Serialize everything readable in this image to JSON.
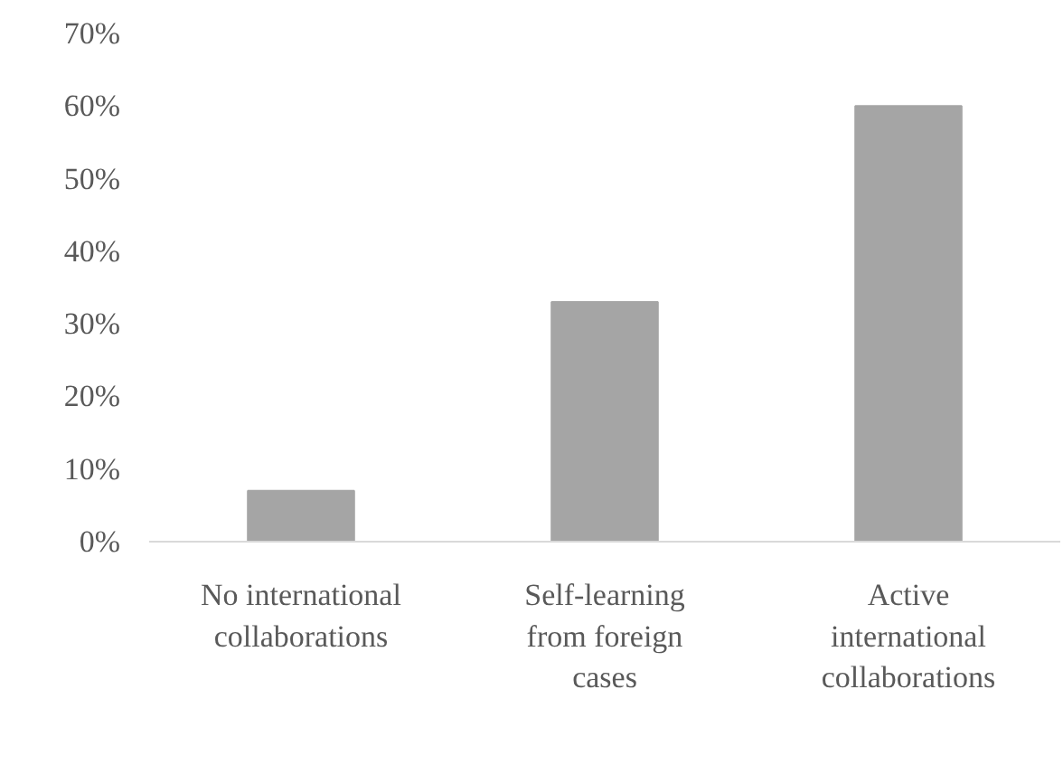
{
  "chart_data": {
    "type": "bar",
    "categories": [
      "No international\ncollaborations",
      "Self-learning\nfrom foreign\ncases",
      "Active\ninternational\ncollaborations"
    ],
    "values": [
      7,
      33,
      60
    ],
    "color": "#a5a5a5",
    "ylim": [
      0,
      70
    ],
    "yticks": [
      {
        "value": 0,
        "label": "0%"
      },
      {
        "value": 10,
        "label": "10%"
      },
      {
        "value": 20,
        "label": "20%"
      },
      {
        "value": 30,
        "label": "30%"
      },
      {
        "value": 40,
        "label": "40%"
      },
      {
        "value": 50,
        "label": "50%"
      },
      {
        "value": 60,
        "label": "60%"
      },
      {
        "value": 70,
        "label": "70%"
      }
    ],
    "grid": false
  }
}
